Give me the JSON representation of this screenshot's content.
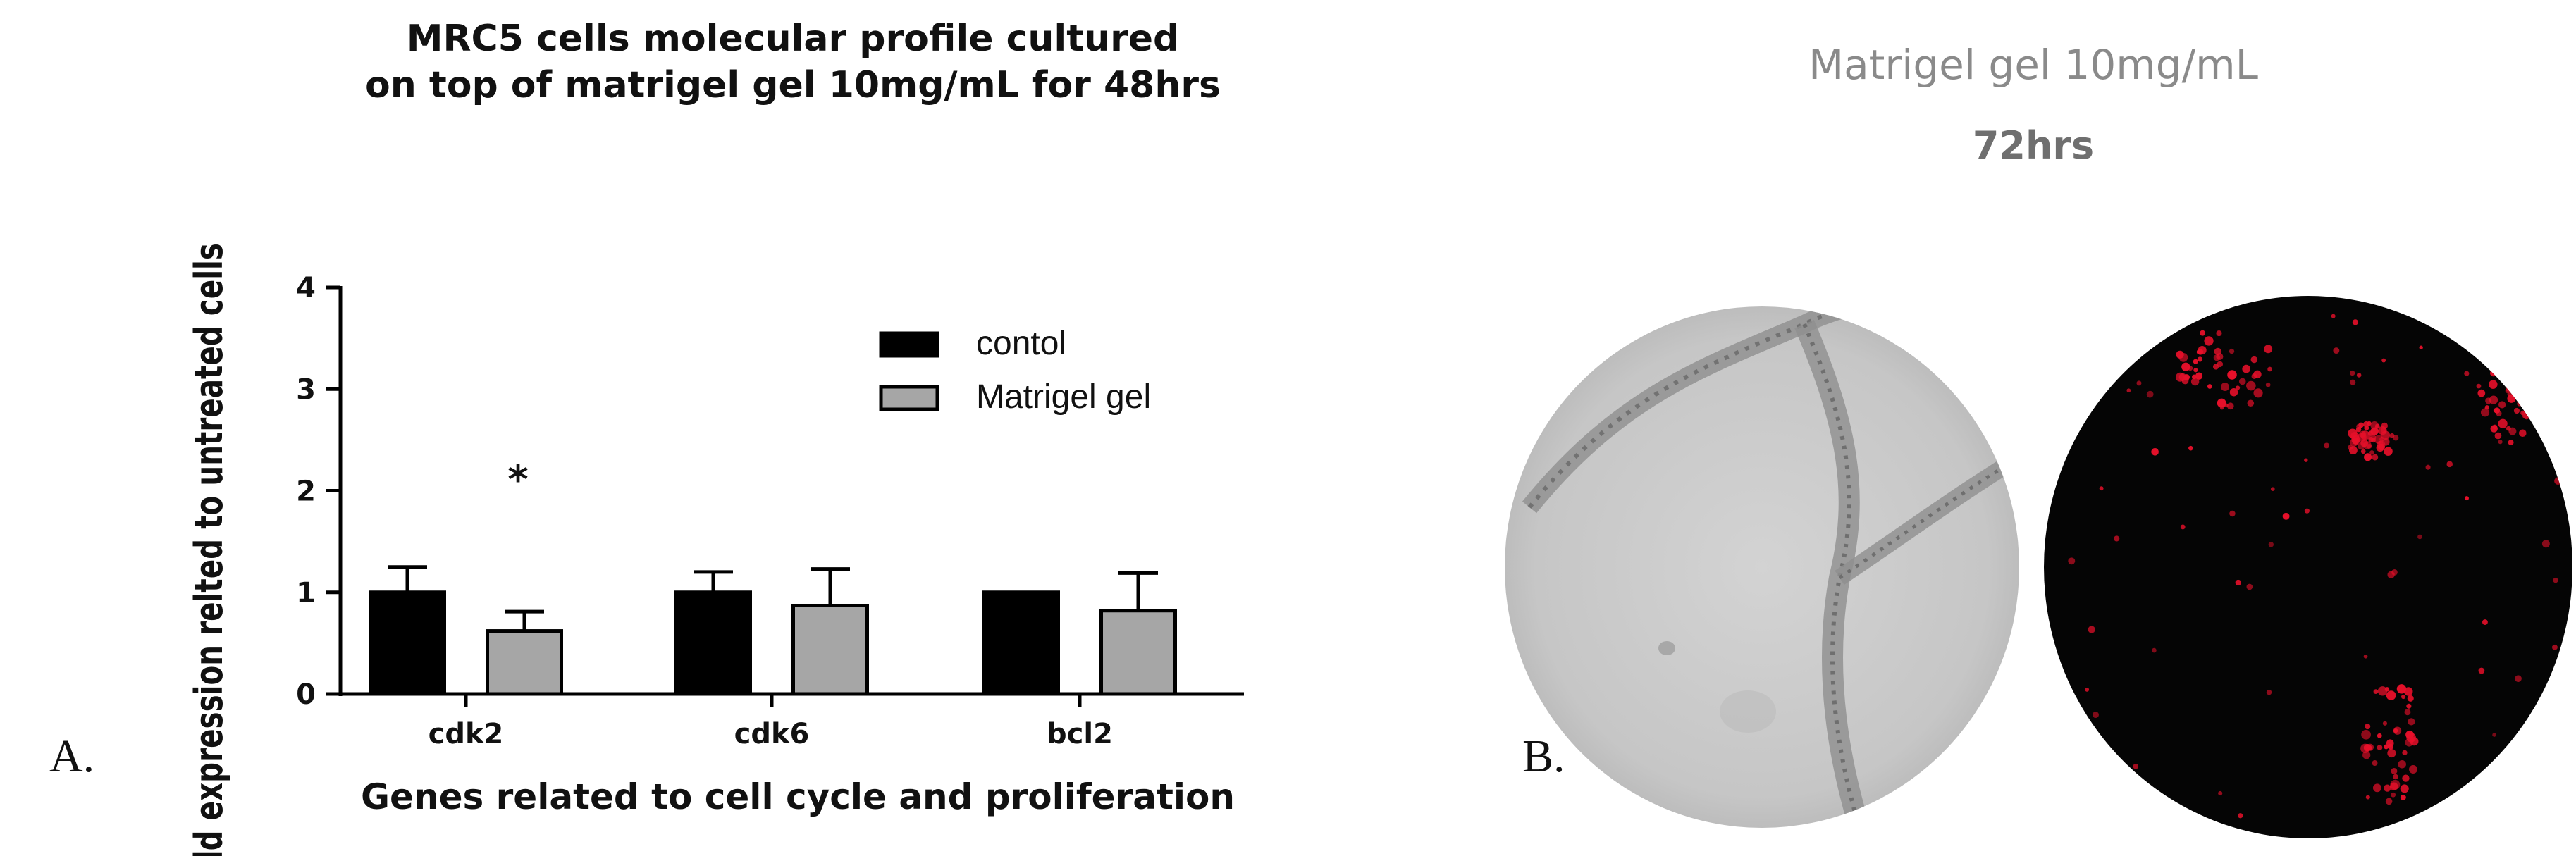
{
  "panel_a": {
    "letter": "A.",
    "title_line1": "MRC5 cells molecular profile cultured",
    "title_line2": "on top of  matrigel gel 10mg/mL for 48hrs",
    "significance_marker": "*"
  },
  "panel_b": {
    "letter": "B.",
    "title": "Matrigel gel 10mg/mL",
    "subtitle": "72hrs"
  },
  "colors": {
    "control": "#000000",
    "matrigel": "#a6a6a6",
    "fluorescence": "#e8102a",
    "micrograph_gray": "#cdcdcd"
  },
  "chart_data": {
    "type": "bar",
    "title": "MRC5 cells molecular profile cultured on top of  matrigel gel 10mg/mL for 48hrs",
    "xlabel": "Genes related to cell cycle and proliferation",
    "ylabel": "Fold expression relted to untreated cells",
    "categories": [
      "cdk2",
      "cdk6",
      "bcl2"
    ],
    "series": [
      {
        "name": "contol",
        "values": [
          1.0,
          1.0,
          1.0
        ],
        "errors": [
          0.25,
          0.2,
          0.0
        ]
      },
      {
        "name": "Matrigel gel",
        "values": [
          0.62,
          0.87,
          0.82
        ],
        "errors": [
          0.19,
          0.36,
          0.37
        ]
      }
    ],
    "ylim": [
      0,
      4
    ],
    "yticks": [
      "0",
      "1",
      "2",
      "3",
      "4"
    ],
    "legend_position": "top-right",
    "grid": false
  }
}
